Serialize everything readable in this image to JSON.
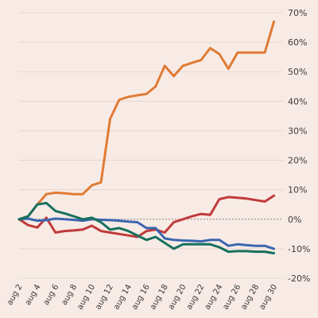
{
  "chart_data": {
    "type": "line",
    "title": "",
    "xlabel": "",
    "ylabel": "",
    "x": [
      2,
      3,
      4,
      5,
      6,
      7,
      8,
      9,
      10,
      11,
      12,
      13,
      14,
      15,
      16,
      17,
      18,
      19,
      20,
      21,
      22,
      23,
      24,
      25,
      26,
      27,
      28,
      29,
      30,
      31
    ],
    "x_tick_labels": [
      "aug 2",
      "aug 4",
      "aug 6",
      "aug 8",
      "aug 10",
      "aug 12",
      "aug 14",
      "aug 16",
      "aug 18",
      "aug 20",
      "aug 22",
      "aug 24",
      "aug 26",
      "aug 28",
      "aug 30"
    ],
    "x_tick_values": [
      2,
      4,
      6,
      8,
      10,
      12,
      14,
      16,
      18,
      20,
      22,
      24,
      26,
      28,
      30
    ],
    "y_tick_values": [
      -20,
      -10,
      0,
      10,
      20,
      30,
      40,
      50,
      60,
      70
    ],
    "y_tick_labels": [
      "-20%",
      "-10%",
      "0%",
      "10%",
      "20%",
      "30%",
      "40%",
      "50%",
      "60%",
      "70%"
    ],
    "xlim": [
      2,
      31
    ],
    "ylim": [
      -20,
      70
    ],
    "grid": true,
    "series": [
      {
        "color": "#e07b36",
        "values": [
          0,
          1,
          5,
          8.5,
          9,
          8.8,
          8.5,
          8.5,
          11.5,
          12.5,
          34,
          40.5,
          41.5,
          42,
          42.5,
          45,
          52,
          48.5,
          52,
          53,
          54,
          58,
          56,
          51,
          56.5,
          56.5,
          56.5,
          56.5,
          67,
          null
        ]
      },
      {
        "color": "#c03a3a",
        "values": [
          0,
          -2,
          -2.8,
          0.5,
          -4.5,
          -4,
          -3.8,
          -3.5,
          -2.2,
          -4,
          -4.5,
          -5,
          -5.5,
          -6,
          -4,
          -3.5,
          -4.5,
          -1,
          0,
          1,
          1.8,
          1.5,
          6.8,
          7.5,
          7.3,
          7,
          6.5,
          6,
          8,
          null
        ]
      },
      {
        "color": "#3a66b0",
        "values": [
          0,
          0.2,
          -0.5,
          -0.3,
          0.2,
          0,
          -0.2,
          -0.5,
          0,
          -0.2,
          -0.3,
          -0.5,
          -0.8,
          -1,
          -3,
          -3,
          -6.5,
          -7,
          -7.2,
          -7.3,
          -7.5,
          -7,
          -7,
          -9,
          -8.5,
          -8.8,
          -9,
          -9,
          -10,
          null
        ]
      },
      {
        "color": "#17705e",
        "values": [
          0,
          1,
          5,
          5.5,
          2.8,
          2,
          1,
          0,
          0.5,
          -1,
          -3.5,
          -3,
          -4,
          -5.5,
          -7,
          -6,
          -8,
          -10,
          -8.5,
          -8.5,
          -8.5,
          -8.5,
          -9.5,
          -11,
          -10.8,
          -10.8,
          -11,
          -11,
          -11.5,
          null
        ]
      }
    ]
  }
}
